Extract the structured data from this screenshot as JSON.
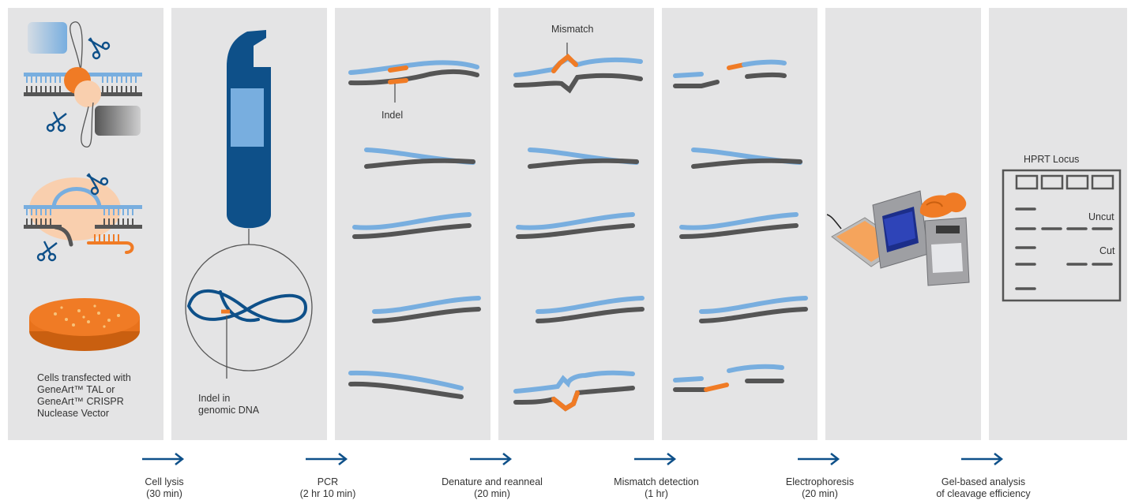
{
  "colors": {
    "panel_bg": "#e4e4e5",
    "dna_blue": "#78aedf",
    "dna_dark": "#555555",
    "orange": "#f07b25",
    "navy": "#0e5089",
    "peach": "#f9cfae"
  },
  "panels": {
    "transfection": {
      "caption_line1": "Cells transfected with",
      "caption_line2": "GeneArt™ TAL or",
      "caption_line3": "GeneArt™ CRISPR",
      "caption_line4": "Nuclease Vector"
    },
    "pcr": {
      "label_line1": "Indel in",
      "label_line2": "genomic DNA"
    },
    "amplicons": {
      "indel_label": "Indel"
    },
    "reanneal": {
      "mismatch_label": "Mismatch"
    },
    "gel": {
      "title": "HPRT Locus",
      "uncut_label": "Uncut",
      "cut_label": "Cut"
    }
  },
  "steps": [
    {
      "name": "Cell lysis",
      "time": "(30 min)",
      "icon": "arrow-right-icon"
    },
    {
      "name": "PCR",
      "time": "(2 hr 10 min)",
      "icon": "arrow-right-icon"
    },
    {
      "name": "Denature and reanneal",
      "time": "(20 min)",
      "icon": "arrow-right-icon"
    },
    {
      "name": "Mismatch detection",
      "time": "(1 hr)",
      "icon": "arrow-right-icon"
    },
    {
      "name": "Electrophoresis",
      "time": "(20 min)",
      "icon": "arrow-right-icon"
    },
    {
      "name": "Gel-based analysis",
      "time": "of cleavage efficiency",
      "icon": "arrow-right-icon"
    }
  ]
}
